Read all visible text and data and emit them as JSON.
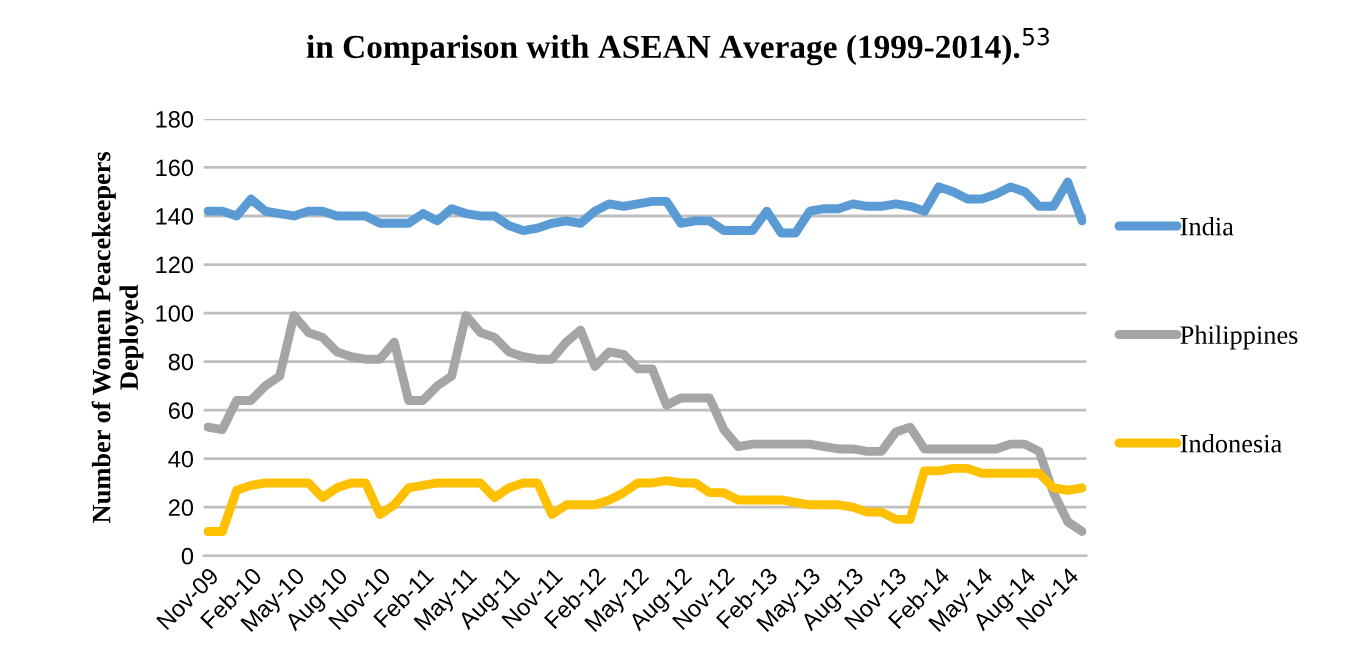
{
  "chart_data": {
    "type": "line",
    "title": "in Comparison with ASEAN Average (1999-2014).$^{53}$",
    "ylabel": "Number of Women Peacekeepers\nDeployed",
    "categories": [
      "Nov-09",
      null,
      null,
      "Feb-10",
      null,
      null,
      "May-10",
      null,
      null,
      "Aug-10",
      null,
      null,
      "Nov-10",
      null,
      null,
      "Feb-11",
      null,
      null,
      "May-11",
      null,
      null,
      "Aug-11",
      null,
      null,
      "Nov-11",
      null,
      null,
      "Feb-12",
      null,
      null,
      "May-12",
      null,
      null,
      "Aug-12",
      null,
      null,
      "Nov-12",
      null,
      null,
      "Feb-13",
      null,
      null,
      "May-13",
      null,
      null,
      "Aug-13",
      null,
      null,
      "Nov-13",
      null,
      null,
      "Feb-14",
      null,
      null,
      "May-14",
      null,
      null,
      "Aug-14",
      null,
      null,
      "Nov-14",
      null
    ],
    "series": [
      {
        "name": "India",
        "color": "#5b9bd5",
        "values": [
          142,
          142,
          140,
          147,
          142,
          141,
          140,
          142,
          142,
          140,
          140,
          140,
          137,
          137,
          137,
          141,
          138,
          143,
          141,
          140,
          140,
          136,
          134,
          135,
          137,
          138,
          137,
          142,
          145,
          144,
          145,
          146,
          146,
          137,
          138,
          138,
          134,
          134,
          134,
          142,
          133,
          133,
          142,
          143,
          143,
          145,
          144,
          144,
          145,
          144,
          142,
          152,
          150,
          147,
          147,
          149,
          152,
          150,
          144,
          144,
          154,
          138
        ]
      },
      {
        "name": "Philippines",
        "color": "#a5a5a5",
        "values": [
          53,
          52,
          64,
          64,
          70,
          74,
          99,
          92,
          90,
          84,
          82,
          81,
          81,
          88,
          64,
          64,
          70,
          74,
          99,
          92,
          90,
          84,
          82,
          81,
          81,
          88,
          93,
          78,
          84,
          83,
          77,
          77,
          62,
          65,
          65,
          65,
          52,
          45,
          46,
          46,
          46,
          46,
          46,
          45,
          44,
          44,
          43,
          43,
          51,
          53,
          44,
          44,
          44,
          44,
          44,
          44,
          46,
          46,
          43,
          26,
          14,
          10
        ]
      },
      {
        "name": "Indonesia",
        "color": "#ffc000",
        "values": [
          10,
          10,
          27,
          29,
          30,
          30,
          30,
          30,
          24,
          28,
          30,
          30,
          17,
          21,
          28,
          29,
          30,
          30,
          30,
          30,
          24,
          28,
          30,
          30,
          17,
          21,
          21,
          21,
          23,
          26,
          30,
          30,
          31,
          30,
          30,
          26,
          26,
          23,
          23,
          23,
          23,
          22,
          21,
          21,
          21,
          20,
          18,
          18,
          15,
          15,
          35,
          35,
          36,
          36,
          34,
          34,
          34,
          34,
          34,
          28,
          27,
          28
        ]
      }
    ],
    "ylim": [
      0,
      180
    ],
    "yticks": [
      0,
      20,
      40,
      60,
      80,
      100,
      120,
      140,
      160,
      180
    ],
    "grid": "y",
    "legend": "right",
    "marker": "none",
    "line_style": "solid"
  }
}
